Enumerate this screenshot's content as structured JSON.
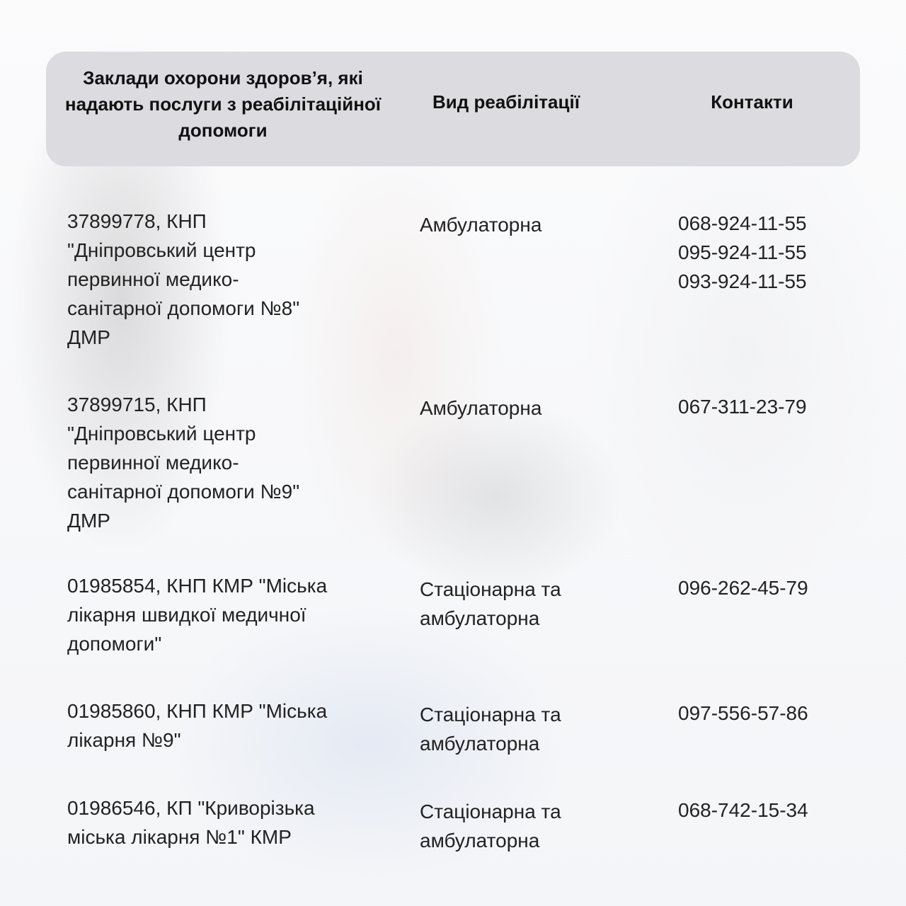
{
  "header": {
    "col1": "Заклади охорони здоров’я, які надають послуги з реабілітаційної допомоги",
    "col2": "Вид реабілітації",
    "col3": "Контакти"
  },
  "rows": [
    {
      "name_lines": [
        "37899778, КНП",
        "\"Дніпровський центр",
        "первинної медико-",
        "санітарної допомоги №8\"",
        "ДМР"
      ],
      "type_lines": [
        "Амбулаторна"
      ],
      "contacts": [
        "068-924-11-55",
        "095-924-11-55",
        "093-924-11-55"
      ]
    },
    {
      "name_lines": [
        "37899715, КНП",
        "\"Дніпровський центр",
        "первинної медико-",
        "санітарної допомоги №9\"",
        "ДМР"
      ],
      "type_lines": [
        "Амбулаторна"
      ],
      "contacts": [
        "067-311-23-79"
      ]
    },
    {
      "name_lines": [
        "01985854, КНП КМР \"Міська",
        "лікарня швидкої медичної",
        "допомоги\""
      ],
      "type_lines": [
        "Стаціонарна та",
        "амбулаторна"
      ],
      "contacts": [
        "096-262-45-79"
      ]
    },
    {
      "name_lines": [
        "01985860, КНП КМР \"Міська",
        "лікарня №9\""
      ],
      "type_lines": [
        "Стаціонарна та",
        "амбулаторна"
      ],
      "contacts": [
        "097-556-57-86"
      ]
    },
    {
      "name_lines": [
        "01986546, КП \"Криворізька",
        "міська лікарня №1\" КМР"
      ],
      "type_lines": [
        "Стаціонарна та",
        "амбулаторна"
      ],
      "contacts": [
        "068-742-15-34"
      ]
    }
  ]
}
